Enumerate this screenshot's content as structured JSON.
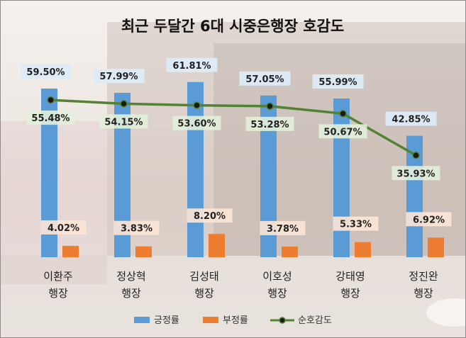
{
  "chart_data": {
    "type": "bar",
    "title": "최근 두달간 6대 시중은행장 호감도",
    "categories": [
      [
        "이환주",
        "행장"
      ],
      [
        "정상혁",
        "행장"
      ],
      [
        "김성태",
        "행장"
      ],
      [
        "이호성",
        "행장"
      ],
      [
        "강태영",
        "행장"
      ],
      [
        "정진완",
        "행장"
      ]
    ],
    "series": [
      {
        "name": "긍정률",
        "kind": "bar",
        "color": "#5b9bd5",
        "values": [
          59.5,
          57.99,
          61.81,
          57.05,
          55.99,
          42.85
        ],
        "labels": [
          "59.50%",
          "57.99%",
          "61.81%",
          "57.05%",
          "55.99%",
          "42.85%"
        ]
      },
      {
        "name": "부정률",
        "kind": "bar",
        "color": "#ed7d31",
        "values": [
          4.02,
          3.83,
          8.2,
          3.78,
          5.33,
          6.92
        ],
        "labels": [
          "4.02%",
          "3.83%",
          "8.20%",
          "3.78%",
          "5.33%",
          "6.92%"
        ]
      },
      {
        "name": "순호감도",
        "kind": "line",
        "color": "#548235",
        "values": [
          55.48,
          54.15,
          53.6,
          53.28,
          50.67,
          35.93
        ],
        "labels": [
          "55.48%",
          "54.15%",
          "53.60%",
          "53.28%",
          "50.67%",
          "35.93%"
        ]
      }
    ],
    "ylim": [
      0,
      70
    ],
    "grid": false,
    "legend": "bottom"
  }
}
